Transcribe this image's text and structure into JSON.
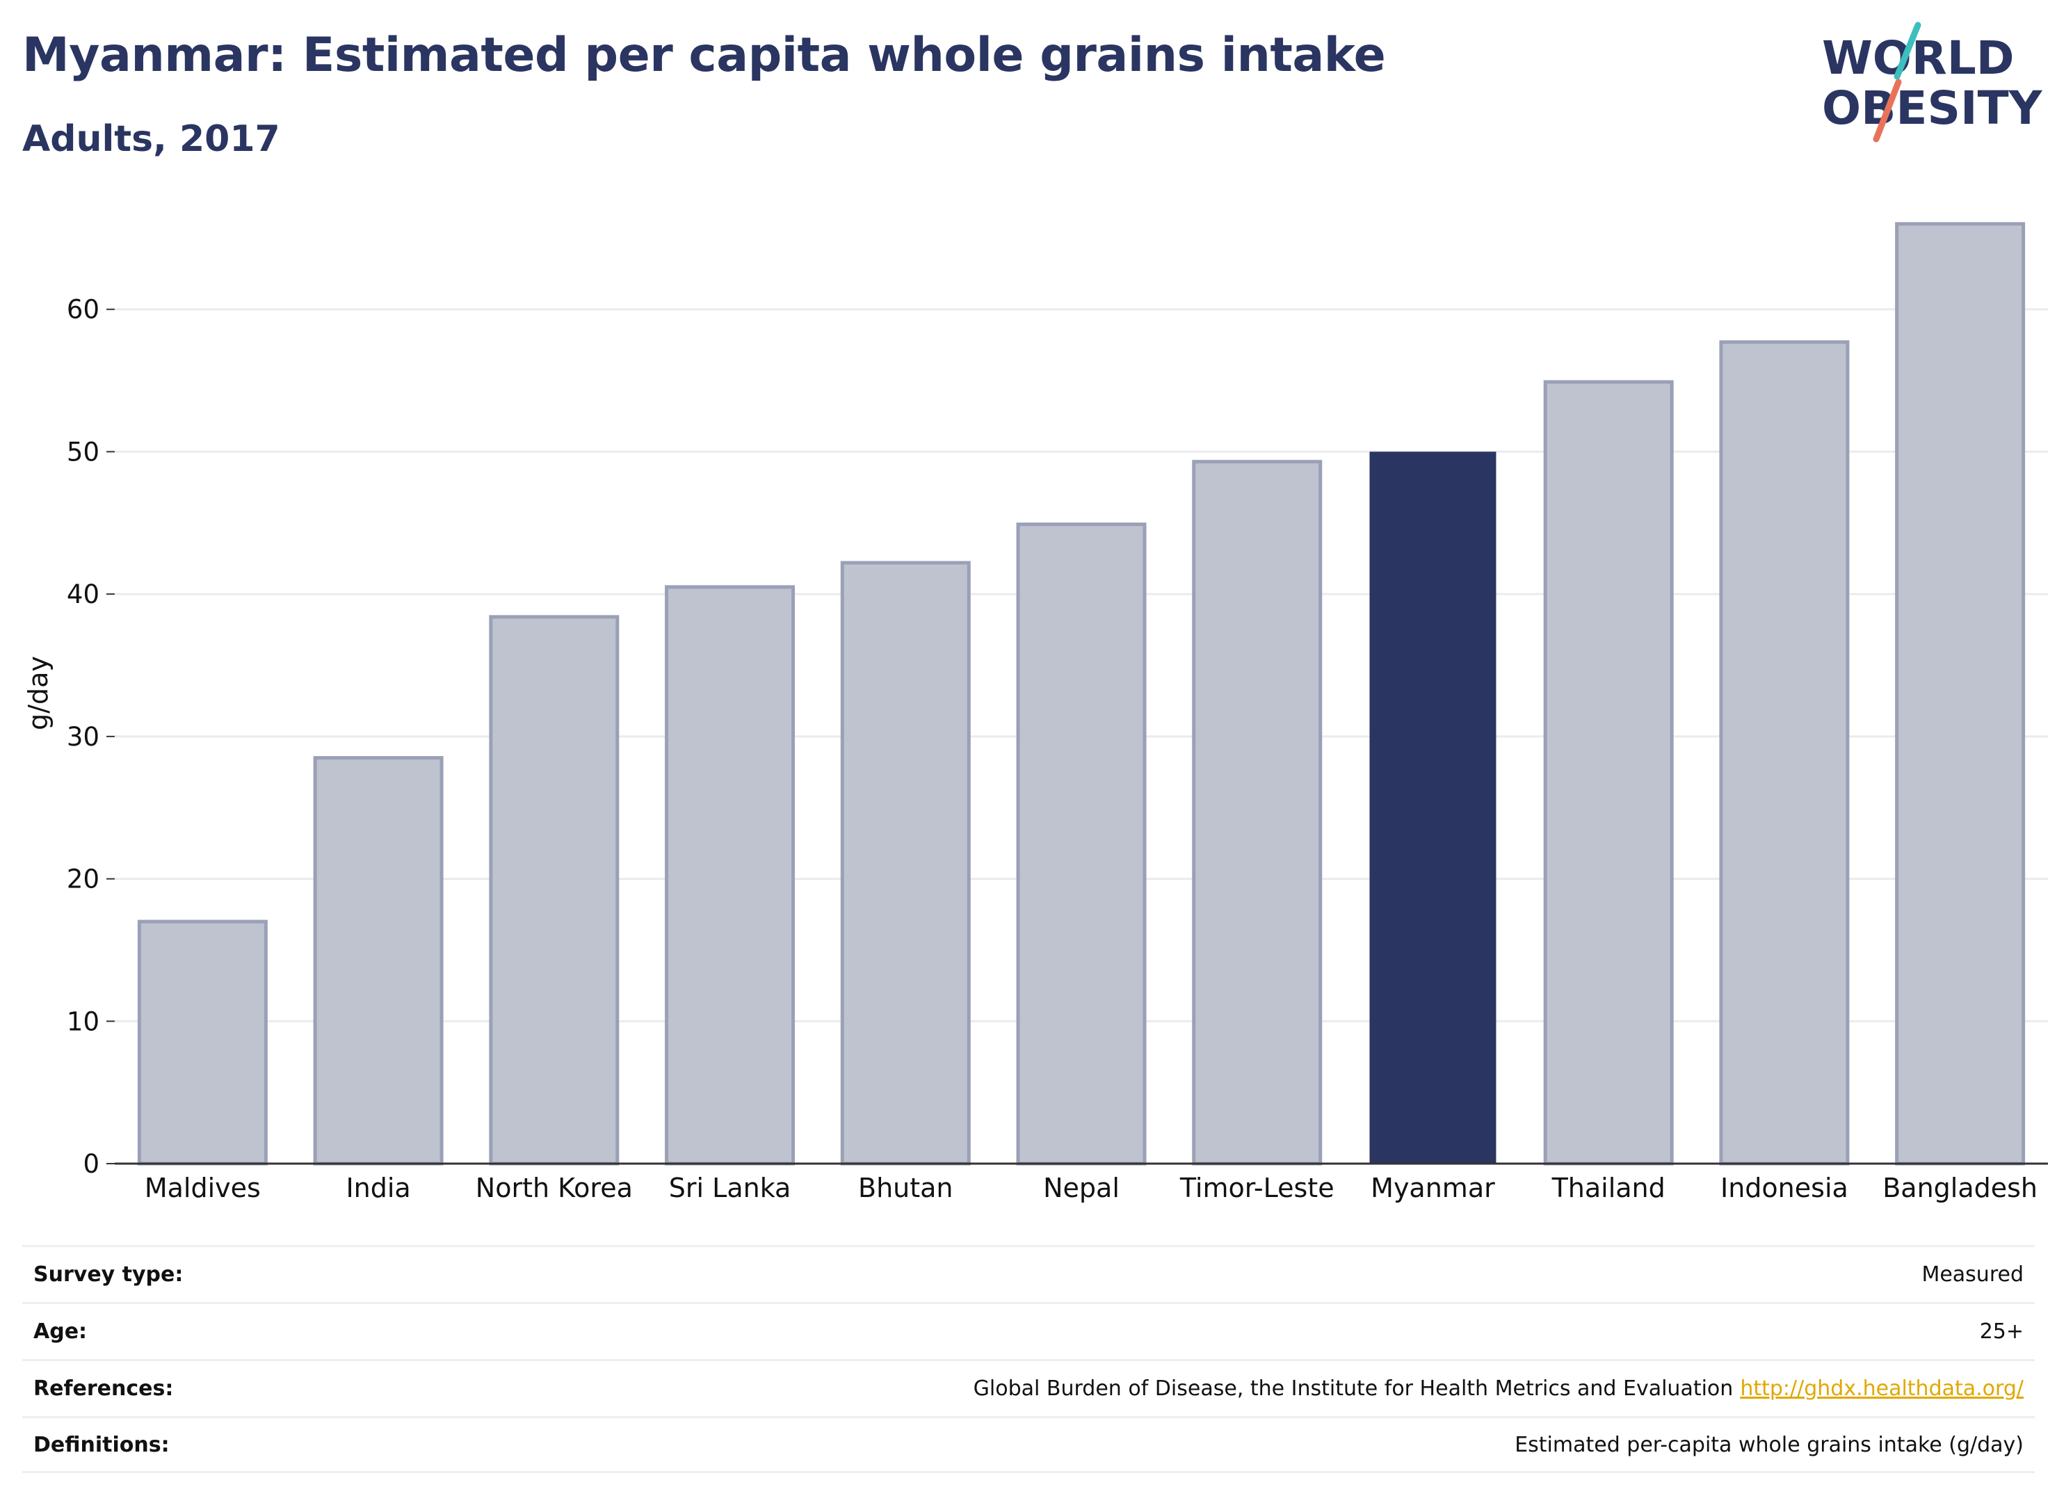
{
  "header": {
    "title": "Myanmar: Estimated per capita whole grains intake",
    "subtitle": "Adults, 2017"
  },
  "logo": {
    "line1": "WORLD",
    "line2": "OBESITY",
    "accent_colors": [
      "#3bbfbf",
      "#e8735a"
    ]
  },
  "chart_data": {
    "type": "bar",
    "categories": [
      "Maldives",
      "India",
      "North Korea",
      "Sri Lanka",
      "Bhutan",
      "Nepal",
      "Timor-Leste",
      "Myanmar",
      "Thailand",
      "Indonesia",
      "Bangladesh"
    ],
    "values": [
      17.0,
      28.5,
      38.4,
      40.5,
      42.2,
      44.9,
      49.3,
      50.0,
      54.9,
      57.7,
      66.0
    ],
    "highlight": "Myanmar",
    "xlabel": "",
    "ylabel": "g/day",
    "ylim": [
      0,
      70
    ],
    "yticks": [
      0,
      10,
      20,
      30,
      40,
      50,
      60
    ],
    "grid": true,
    "colors": {
      "bar": "#bfc3d0",
      "bar_edge": "#9aa0b6",
      "highlight": "#2a3561"
    }
  },
  "info": [
    {
      "key": "Survey type:",
      "value": "Measured"
    },
    {
      "key": "Age:",
      "value": "25+"
    },
    {
      "key": "References:",
      "value": "Global Burden of Disease, the Institute for Health Metrics and Evaluation",
      "link": "http://ghdx.healthdata.org/"
    },
    {
      "key": "Definitions:",
      "value": "Estimated per-capita whole grains intake (g/day)"
    }
  ]
}
